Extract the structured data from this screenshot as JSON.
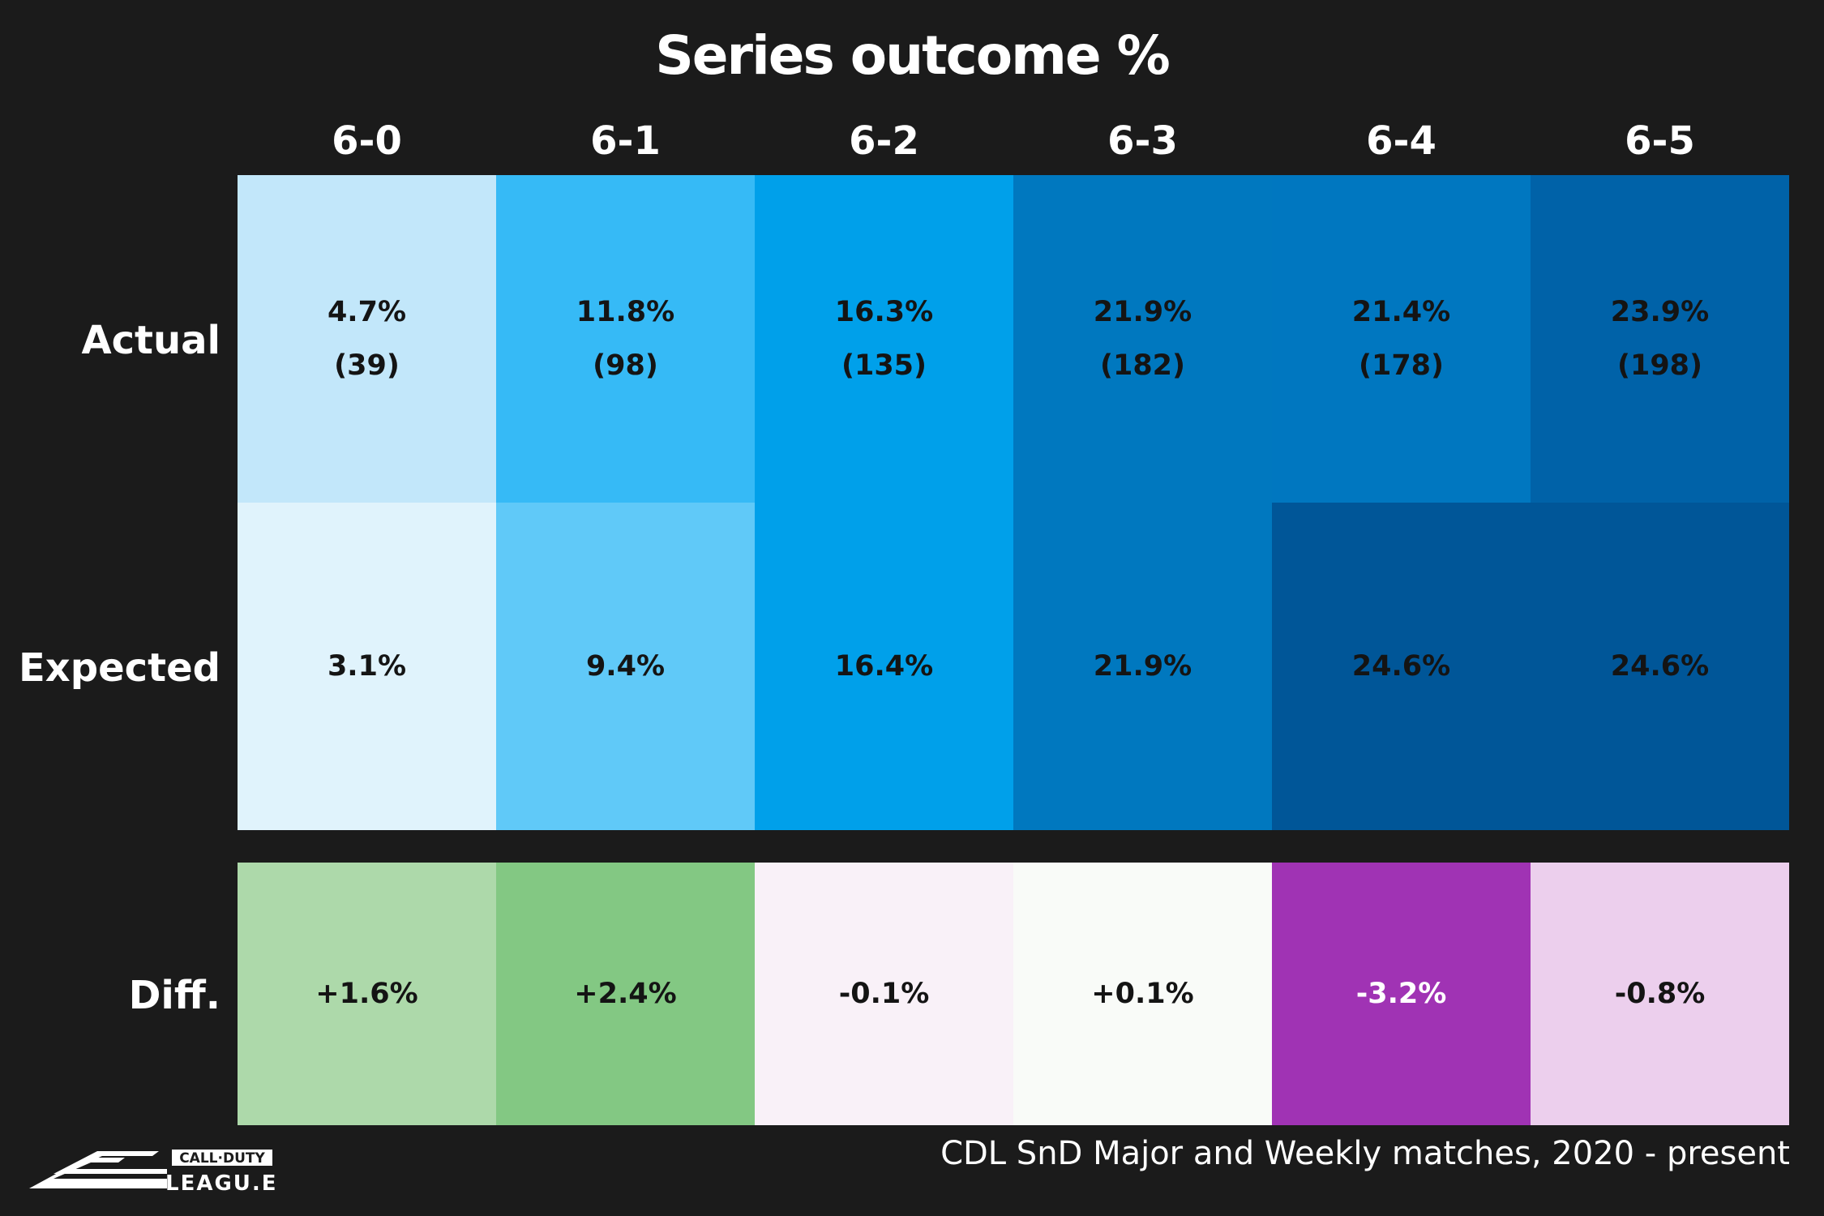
{
  "chart_data": {
    "type": "heatmap",
    "title": "Series outcome %",
    "columns": [
      "6-0",
      "6-1",
      "6-2",
      "6-3",
      "6-4",
      "6-5"
    ],
    "rows": [
      {
        "label": "Actual",
        "values": [
          4.7,
          11.8,
          16.3,
          21.9,
          21.4,
          23.9
        ],
        "value_labels": [
          "4.7%",
          "11.8%",
          "16.3%",
          "21.9%",
          "21.4%",
          "23.9%"
        ],
        "counts": [
          39,
          98,
          135,
          182,
          178,
          198
        ],
        "count_labels": [
          "(39)",
          "(98)",
          "(135)",
          "(182)",
          "(178)",
          "(198)"
        ],
        "colors": [
          "#c2e7fa",
          "#36baf6",
          "#00a0ea",
          "#0078bf",
          "#0077c0",
          "#0062a8"
        ]
      },
      {
        "label": "Expected",
        "values": [
          3.1,
          9.4,
          16.4,
          21.9,
          24.6,
          24.6
        ],
        "value_labels": [
          "3.1%",
          "9.4%",
          "16.4%",
          "21.9%",
          "24.6%",
          "24.6%"
        ],
        "colors": [
          "#e0f3fc",
          "#60c9f8",
          "#00a0ea",
          "#0078bf",
          "#005698",
          "#005698"
        ]
      },
      {
        "label": "Diff.",
        "values": [
          1.6,
          2.4,
          -0.1,
          0.1,
          -3.2,
          -0.8
        ],
        "value_labels": [
          "+1.6%",
          "+2.4%",
          "-0.1%",
          "+0.1%",
          "-3.2%",
          "-0.8%"
        ],
        "colors": [
          "#add9aa",
          "#83c883",
          "#f9f1f8",
          "#f9fbf8",
          "#a033b4",
          "#eccfed"
        ],
        "text_colors": [
          "#141414",
          "#141414",
          "#141414",
          "#141414",
          "#ffffff",
          "#141414"
        ]
      }
    ]
  },
  "footnote": "CDL SnD Major and Weekly matches, 2020 - present",
  "logo": {
    "top_text": "CALL·DUTY",
    "bottom_text": "LEAGU.E"
  }
}
